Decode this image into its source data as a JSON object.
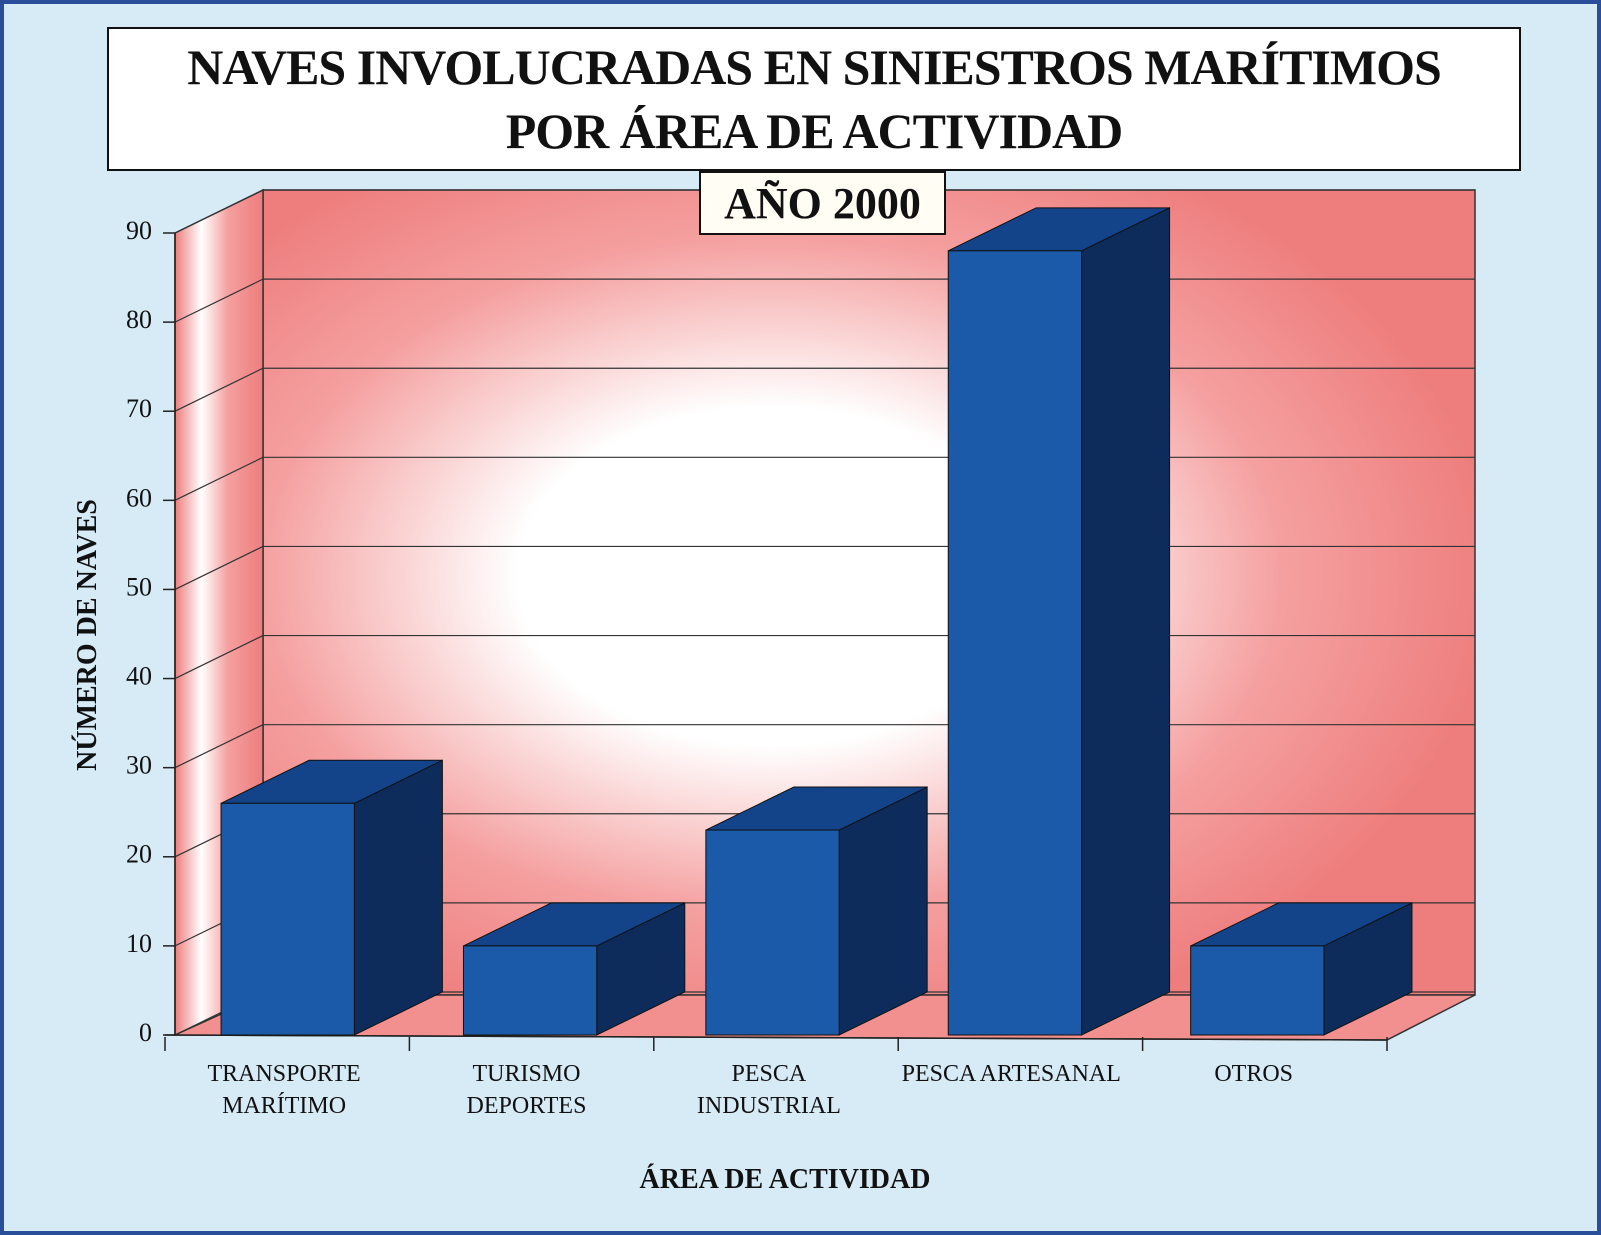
{
  "chart_data": {
    "type": "bar3d",
    "title": "NAVES INVOLUCRADAS EN SINIESTROS MARÍTIMOS\nPOR ÁREA DE ACTIVIDAD",
    "subtitle": "AÑO 2000",
    "x_label": "ÁREA DE ACTIVIDAD",
    "y_label": "NÚMERO DE NAVES",
    "categories": [
      "TRANSPORTE\nMARÍTIMO",
      "TURISMO\nDEPORTES",
      "PESCA\nINDUSTRIAL",
      "PESCA ARTESANAL",
      "OTROS"
    ],
    "values": [
      26,
      10,
      23,
      88,
      10
    ],
    "color": "#1a5aa8",
    "ylim": [
      0,
      90
    ],
    "yticks": [
      0,
      10,
      20,
      30,
      40,
      50,
      60,
      70,
      80,
      90
    ],
    "grid": true
  }
}
